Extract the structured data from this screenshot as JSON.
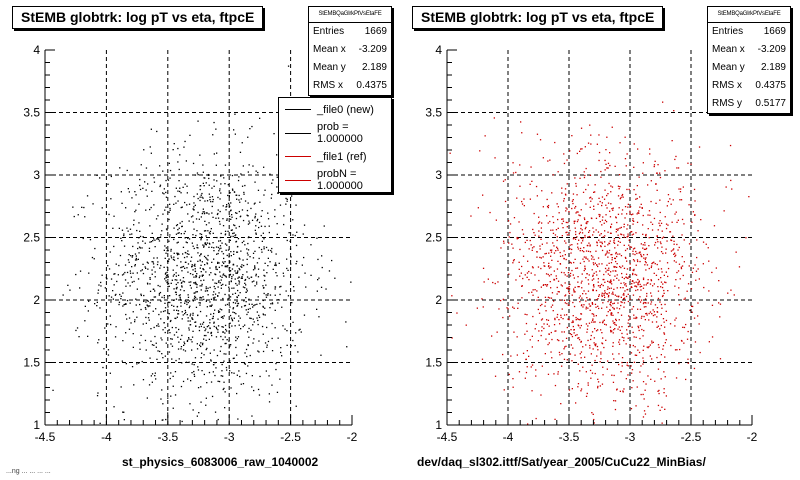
{
  "chart_data": [
    {
      "type": "scatter",
      "title": "StEMB globtrk: log pT vs eta, ftpcE",
      "xlabel": "st_physics_6083006_raw_1040002",
      "ylabel": "",
      "xlim": [
        -4.5,
        -2
      ],
      "ylim": [
        1,
        4
      ],
      "x_ticks": [
        "-4.5",
        "-4",
        "-3.5",
        "-3",
        "-2.5",
        "-2"
      ],
      "y_ticks": [
        "1",
        "1.5",
        "2",
        "2.5",
        "3",
        "3.5",
        "4"
      ],
      "grid": true,
      "marker_color": "#000000",
      "series": [
        {
          "name": "_file0 (new)",
          "color": "#000000"
        }
      ],
      "distribution": {
        "n": 1669,
        "mean_x": -3.209,
        "mean_y": 2.189,
        "rms_x": 0.4375,
        "rms_y": 0.5177
      }
    },
    {
      "type": "scatter",
      "title": "StEMB globtrk: log pT vs eta, ftpcE",
      "xlabel": "dev/daq_sl302.ittf/Sat/year_2005/CuCu22_MinBias/",
      "ylabel": "",
      "xlim": [
        -4.5,
        -2
      ],
      "ylim": [
        1,
        4
      ],
      "x_ticks": [
        "-4.5",
        "-4",
        "-3.5",
        "-3",
        "-2.5",
        "-2"
      ],
      "y_ticks": [
        "1",
        "1.5",
        "2",
        "2.5",
        "3",
        "3.5",
        "4"
      ],
      "grid": true,
      "marker_color": "#cc0000",
      "series": [
        {
          "name": "_file1 (ref)",
          "color": "#cc0000"
        }
      ],
      "distribution": {
        "n": 1669,
        "mean_x": -3.209,
        "mean_y": 2.189,
        "rms_x": 0.4375,
        "rms_y": 0.5177
      }
    }
  ],
  "panels": [
    {
      "title": "StEMB globtrk: log pT vs eta, ftpcE",
      "stats": {
        "name": "StEMBQaGlrkPtVsEtaFE",
        "rows": [
          {
            "label": "Entries",
            "value": "1669"
          },
          {
            "label": "Mean x",
            "value": "-3.209"
          },
          {
            "label": "Mean y",
            "value": "2.189"
          },
          {
            "label": "RMS x",
            "value": "0.4375"
          }
        ]
      },
      "xlabel": "st_physics_6083006_raw_1040002",
      "footer": "...ng ... ... ... ..."
    },
    {
      "title": "StEMB globtrk: log pT vs eta, ftpcE",
      "stats": {
        "name": "StEMBQaGlrkPtVsEtaFE",
        "rows": [
          {
            "label": "Entries",
            "value": "1669"
          },
          {
            "label": "Mean x",
            "value": "-3.209"
          },
          {
            "label": "Mean y",
            "value": "2.189"
          },
          {
            "label": "RMS x",
            "value": "0.4375"
          },
          {
            "label": "RMS y",
            "value": "0.5177"
          }
        ]
      },
      "xlabel": "dev/daq_sl302.ittf/Sat/year_2005/CuCu22_MinBias/"
    }
  ],
  "legend": {
    "items": [
      {
        "label": "_file0 (new)",
        "color": "#000000"
      },
      {
        "label": "prob = 1.000000",
        "color": "#000000"
      },
      {
        "label": "_file1 (ref)",
        "color": "#cc0000"
      },
      {
        "label": "probN = 1.000000",
        "color": "#cc0000"
      }
    ]
  }
}
